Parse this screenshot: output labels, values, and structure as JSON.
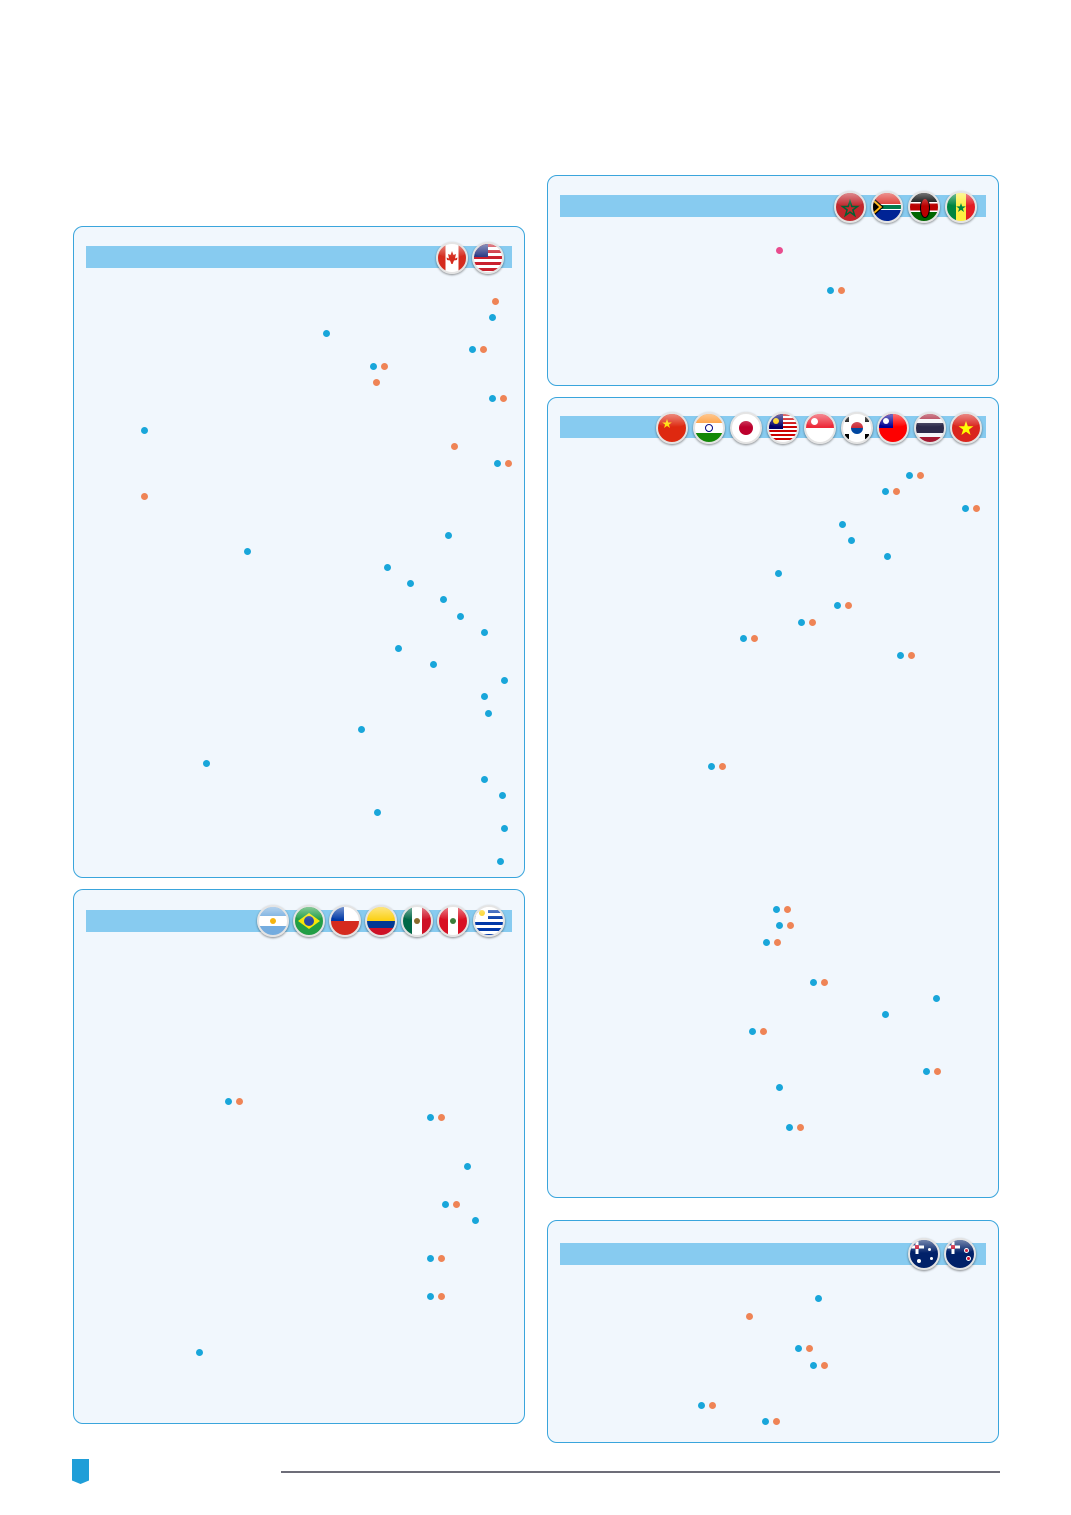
{
  "colors": {
    "panel_background": "#f1f7fd",
    "panel_border": "#3aa5dc",
    "header_band": "#87cbf0",
    "marker_blue": "#19a6da",
    "marker_orange": "#ef8456",
    "marker_pink": "#e94c8e",
    "footer_accent": "#1f9ed8"
  },
  "panels": [
    {
      "id": "north-america",
      "flags": [
        "canada-flag-icon",
        "united-states-flag-icon"
      ]
    },
    {
      "id": "latin-america",
      "flags": [
        "argentina-flag-icon",
        "brazil-flag-icon",
        "chile-flag-icon",
        "colombia-flag-icon",
        "mexico-flag-icon",
        "peru-flag-icon",
        "uruguay-flag-icon"
      ]
    },
    {
      "id": "africa",
      "flags": [
        "morocco-flag-icon",
        "south-africa-flag-icon",
        "kenya-flag-icon",
        "senegal-flag-icon"
      ]
    },
    {
      "id": "asia",
      "flags": [
        "china-flag-icon",
        "india-flag-icon",
        "japan-flag-icon",
        "malaysia-flag-icon",
        "singapore-flag-icon",
        "south-korea-flag-icon",
        "taiwan-flag-icon",
        "thailand-flag-icon",
        "vietnam-flag-icon"
      ]
    },
    {
      "id": "oceania",
      "flags": [
        "australia-flag-icon",
        "new-zealand-flag-icon"
      ]
    }
  ]
}
